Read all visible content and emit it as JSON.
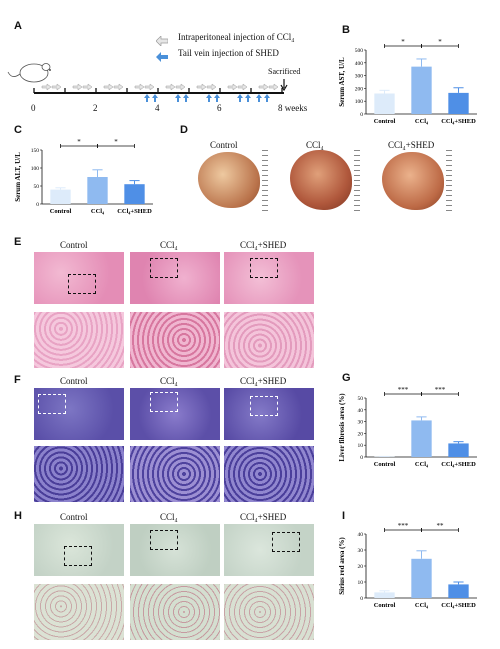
{
  "panels": {
    "A": "A",
    "B": "B",
    "C": "C",
    "D": "D",
    "E": "E",
    "F": "F",
    "G": "G",
    "H": "H",
    "I": "I"
  },
  "timeline": {
    "legend_ccl4": "Intraperitoneal injection of CCl₄",
    "legend_shed": "Tail vein injection of SHED",
    "sacrificed": "Sacrificed",
    "ticks": [
      "0",
      "2",
      "4",
      "6",
      "8 weeks"
    ]
  },
  "groups": [
    "Control",
    "CCl₄",
    "CCl₄+SHED"
  ],
  "liver_photos": {
    "col1": "Control",
    "col2": "CCl₄",
    "col3": "CCl₄+SHED"
  },
  "he": {
    "col1": "Control",
    "col2": "CCl₄",
    "col3": "CCl₄+SHED"
  },
  "masson": {
    "col1": "Control",
    "col2": "CCl₄",
    "col3": "CCl₄+SHED"
  },
  "sirius": {
    "col1": "Control",
    "col2": "CCl₄",
    "col3": "CCl₄+SHED"
  },
  "colors": {
    "control": "#ddebfa",
    "ccl4": "#8fbaf0",
    "shed": "#4f8fe6",
    "ccl4_arrow": "#c8c8c8",
    "shed_arrow": "#4a90d9"
  },
  "chart_data": [
    {
      "id": "B",
      "type": "bar",
      "categories": [
        "Control",
        "CCl₄",
        "CCl₄+SHED"
      ],
      "values": [
        160,
        370,
        165
      ],
      "errors": [
        25,
        60,
        40
      ],
      "ylabel": "Serum AST, U/L",
      "ylim": [
        0,
        500
      ],
      "ticks": [
        "0",
        "100",
        "200",
        "300",
        "400",
        "500"
      ],
      "sig": [
        "*",
        "*"
      ]
    },
    {
      "id": "C",
      "type": "bar",
      "categories": [
        "Control",
        "CCl₄",
        "CCl₄+SHED"
      ],
      "values": [
        40,
        75,
        55
      ],
      "errors": [
        5,
        20,
        10
      ],
      "ylabel": "Serum ALT, U/L",
      "ylim": [
        0,
        150
      ],
      "ticks": [
        "0",
        "50",
        "100",
        "150"
      ],
      "sig": [
        "*",
        "*"
      ]
    },
    {
      "id": "G",
      "type": "bar",
      "categories": [
        "Control",
        "CCl₄",
        "CCl₄+SHED"
      ],
      "values": [
        0.3,
        31,
        11.5
      ],
      "errors": [
        0.2,
        3,
        1.5
      ],
      "ylabel": "Liver fibrosis area (%)",
      "ylim": [
        0,
        50
      ],
      "ticks": [
        "0",
        "10",
        "20",
        "30",
        "40",
        "50"
      ],
      "sig": [
        "***",
        "***"
      ]
    },
    {
      "id": "I",
      "type": "bar",
      "categories": [
        "Control",
        "CCl₄",
        "CCl₄+SHED"
      ],
      "values": [
        3.5,
        24.5,
        8.5
      ],
      "errors": [
        1,
        5,
        1.5
      ],
      "ylabel": "Sirius red area (%)",
      "ylim": [
        0,
        40
      ],
      "ticks": [
        "0",
        "10",
        "20",
        "30",
        "40"
      ],
      "sig": [
        "***",
        "**"
      ]
    }
  ]
}
